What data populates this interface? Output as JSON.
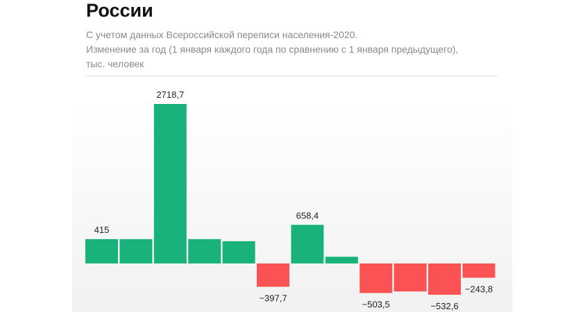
{
  "header": {
    "title": "России",
    "subtitle_line1": "С учетом данных Всероссийской переписи населения-2020.",
    "subtitle_line2": "Изменение за год (1 января каждого года по сравнению с 1 января предыдущего),",
    "subtitle_line3": "тыс. человек"
  },
  "chart_data": {
    "type": "bar",
    "title": "России",
    "ylabel": "тыс. человек",
    "values": [
      415,
      415,
      2718.7,
      415,
      380,
      -397.7,
      658.4,
      115,
      -503.5,
      -478,
      -532.6,
      -243.8
    ],
    "labels": [
      "415",
      "",
      "2718,7",
      "",
      "",
      "−397,7",
      "658,4",
      "",
      "−503,5",
      "",
      "−532,6",
      "−243,8"
    ],
    "positive_color": "#19b27b",
    "negative_color": "#fa5252"
  }
}
